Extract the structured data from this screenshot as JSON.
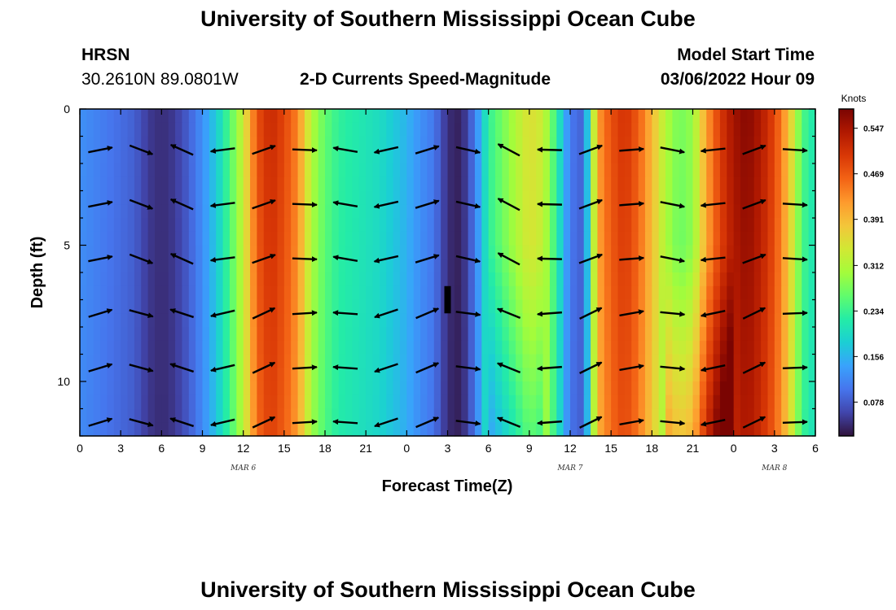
{
  "page": {
    "title": "University of Southern Mississippi Ocean Cube",
    "footer_title": "University of Southern Mississippi Ocean Cube",
    "station": "HRSN",
    "coords": "30.2610N  89.0801W",
    "subtitle": "2-D Currents Speed-Magnitude",
    "model_start_label": "Model Start Time",
    "model_start_value": "03/06/2022 Hour 09"
  },
  "chart_data": {
    "type": "heatmap",
    "title": "2-D Currents Speed-Magnitude",
    "xlabel": "Forecast Time(Z)",
    "ylabel": "Depth (ft)",
    "colorbar_label": "Knots",
    "x_ticks": [
      "0",
      "3",
      "6",
      "9",
      "12",
      "15",
      "18",
      "21",
      "0",
      "3",
      "6",
      "9",
      "12",
      "15",
      "18",
      "21",
      "0",
      "3",
      "6"
    ],
    "date_labels": [
      {
        "label": "MAR 6",
        "hour": 12
      },
      {
        "label": "MAR 7",
        "hour": 36
      },
      {
        "label": "MAR 8",
        "hour": 51
      }
    ],
    "xlim_hours": [
      0,
      54
    ],
    "y_ticks": [
      "0",
      "5",
      "10"
    ],
    "ylim_ft": [
      0,
      12
    ],
    "y_inverted": true,
    "colorbar_ticks": [
      "0.547",
      "0.469",
      "0.391",
      "0.312",
      "0.234",
      "0.156",
      "0.078"
    ],
    "colorbar_range_knots": [
      0.02,
      0.58
    ],
    "colormap": [
      "#30123b",
      "#4145ab",
      "#4675ed",
      "#39a2fc",
      "#1bcfd4",
      "#24eca6",
      "#61fc6c",
      "#a4fc3b",
      "#d1e834",
      "#f3c63a",
      "#fe9b2d",
      "#f36315",
      "#d93806",
      "#b11901",
      "#7a0402"
    ],
    "speed_profile_hours": [
      0,
      1,
      2,
      3,
      4,
      5,
      6,
      7,
      8,
      9,
      10,
      11,
      12,
      13,
      14,
      15,
      16,
      17,
      18,
      19,
      20,
      21,
      22,
      23,
      24,
      25,
      26,
      27,
      28,
      29,
      30,
      31,
      32,
      33,
      34,
      35,
      36,
      37,
      38,
      39,
      40,
      41,
      42,
      43,
      44,
      45,
      46,
      47,
      48,
      49,
      50,
      51,
      52,
      53,
      54
    ],
    "speed_profile_knots": [
      0.12,
      0.11,
      0.1,
      0.09,
      0.08,
      0.05,
      0.04,
      0.05,
      0.08,
      0.12,
      0.17,
      0.24,
      0.32,
      0.46,
      0.5,
      0.47,
      0.42,
      0.3,
      0.25,
      0.22,
      0.21,
      0.2,
      0.19,
      0.17,
      0.15,
      0.12,
      0.1,
      0.04,
      0.03,
      0.1,
      0.22,
      0.26,
      0.3,
      0.34,
      0.32,
      0.22,
      0.1,
      0.08,
      0.4,
      0.46,
      0.49,
      0.45,
      0.38,
      0.3,
      0.26,
      0.28,
      0.4,
      0.48,
      0.53,
      0.55,
      0.52,
      0.47,
      0.38,
      0.24,
      0.2
    ],
    "anomaly_bar": {
      "hour": 27,
      "depth_ft": [
        6.5,
        7.5
      ]
    }
  }
}
